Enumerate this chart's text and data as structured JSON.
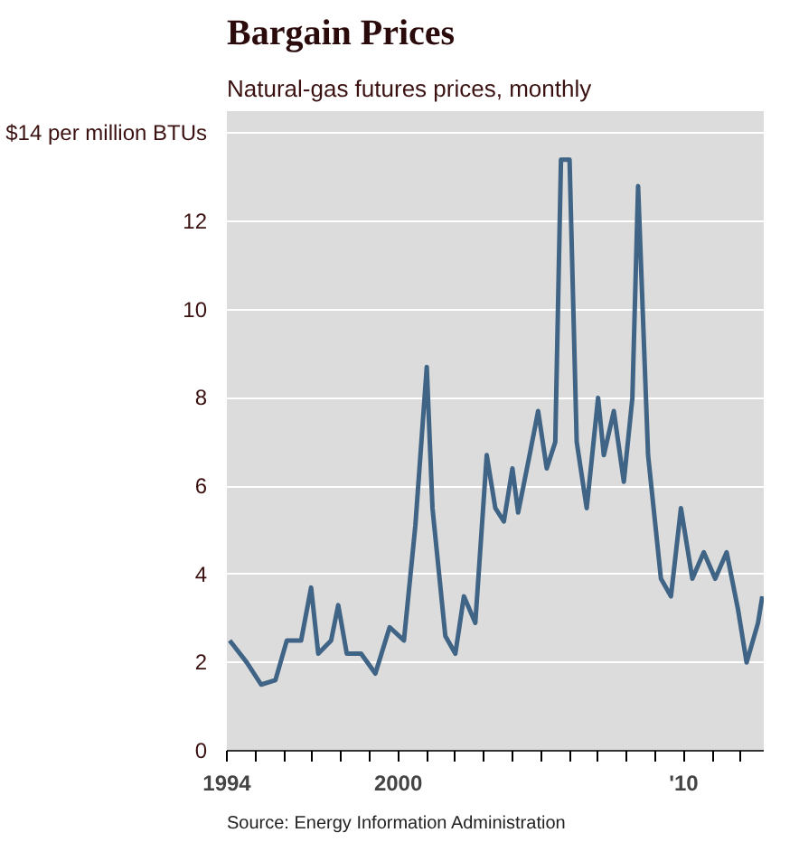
{
  "chart_data": {
    "type": "line",
    "title": "Bargain Prices",
    "subtitle": "Natural-gas futures prices, monthly",
    "annotations": [
      "Source: Energy Information Administration"
    ],
    "x": [
      1994.1,
      1994.7,
      1995.2,
      1995.7,
      1996.1,
      1996.6,
      1996.95,
      1997.2,
      1997.65,
      1997.9,
      1998.2,
      1998.7,
      1999.2,
      1999.7,
      2000.2,
      2000.6,
      2001.0,
      2001.2,
      2001.65,
      2002.0,
      2002.3,
      2002.7,
      2003.1,
      2003.4,
      2003.7,
      2004.0,
      2004.2,
      2004.6,
      2004.9,
      2005.2,
      2005.5,
      2005.7,
      2006.0,
      2006.25,
      2006.6,
      2007.0,
      2007.2,
      2007.55,
      2007.9,
      2008.2,
      2008.4,
      2008.75,
      2009.2,
      2009.55,
      2009.9,
      2010.3,
      2010.7,
      2011.1,
      2011.5,
      2011.9,
      2012.2,
      2012.6,
      2012.75
    ],
    "series": [
      {
        "color": "#3f6485",
        "values": [
          2.5,
          2.0,
          1.5,
          1.6,
          2.5,
          2.5,
          3.7,
          2.2,
          2.5,
          3.3,
          2.2,
          2.2,
          1.75,
          2.8,
          2.5,
          5.1,
          8.7,
          5.5,
          2.6,
          2.2,
          3.5,
          2.9,
          6.7,
          5.5,
          5.2,
          6.4,
          5.4,
          6.7,
          7.7,
          6.4,
          7.0,
          13.4,
          13.4,
          7.0,
          5.5,
          8.0,
          6.7,
          7.7,
          6.1,
          8.0,
          12.8,
          6.7,
          3.9,
          3.5,
          5.5,
          3.9,
          4.5,
          3.9,
          4.5,
          3.2,
          2.0,
          2.9,
          3.5
        ]
      }
    ],
    "xlim": [
      1994,
      2012.8
    ],
    "xticks": [
      1994,
      {
        "value": 1995,
        "label": null
      },
      {
        "value": 1996,
        "label": null
      },
      {
        "value": 1997,
        "label": null
      },
      {
        "value": 1998,
        "label": null
      },
      {
        "value": 1999,
        "label": null
      },
      2000,
      {
        "value": 2001,
        "label": null
      },
      {
        "value": 2002,
        "label": null
      },
      {
        "value": 2003,
        "label": null
      },
      {
        "value": 2004,
        "label": null
      },
      {
        "value": 2005,
        "label": null
      },
      {
        "value": 2006,
        "label": null
      },
      {
        "value": 2007,
        "label": null
      },
      {
        "value": 2008,
        "label": null
      },
      {
        "value": 2009,
        "label": null
      },
      {
        "value": 2010,
        "label": "'10"
      },
      {
        "value": 2011,
        "label": null
      },
      {
        "value": 2012,
        "label": null
      }
    ],
    "ylim": [
      0,
      14.5
    ],
    "yticks": [
      0,
      2,
      4,
      6,
      8,
      10,
      12,
      {
        "value": 14,
        "label": "$14 per million BTUs"
      }
    ],
    "grid": "y"
  }
}
